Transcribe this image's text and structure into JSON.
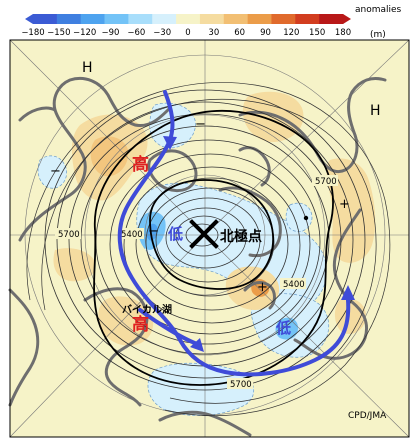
{
  "legend": {
    "title": "anomalies",
    "unit": "(m)",
    "ticks": [
      "−180",
      "−150",
      "−120",
      "−90",
      "−60",
      "−30",
      "0",
      "30",
      "60",
      "90",
      "120",
      "150",
      "180"
    ],
    "colors": [
      "#3b5bd4",
      "#3f7fe0",
      "#4ea3ef",
      "#73c3f7",
      "#a8defb",
      "#d6f0fc",
      "#f6f3c8",
      "#f5dca0",
      "#f2bf73",
      "#eb9c49",
      "#e06a2c",
      "#d23d1f",
      "#b81818"
    ]
  },
  "map": {
    "background": "#f6f3c8",
    "contour_labels": [
      "5700",
      "5400",
      "5700",
      "5400",
      "5700"
    ],
    "pressure_labels": {
      "high_left": "H",
      "high_right": "H"
    },
    "anomaly_signs": [
      "−",
      "−",
      "−",
      "+",
      "+"
    ],
    "annotations": {
      "low_center": "低",
      "high_top": "高",
      "high_bottom": "高",
      "low_right": "低",
      "north_pole": "北極点",
      "baikal": "バイカル湖"
    },
    "credit": "CPD/JMA"
  }
}
